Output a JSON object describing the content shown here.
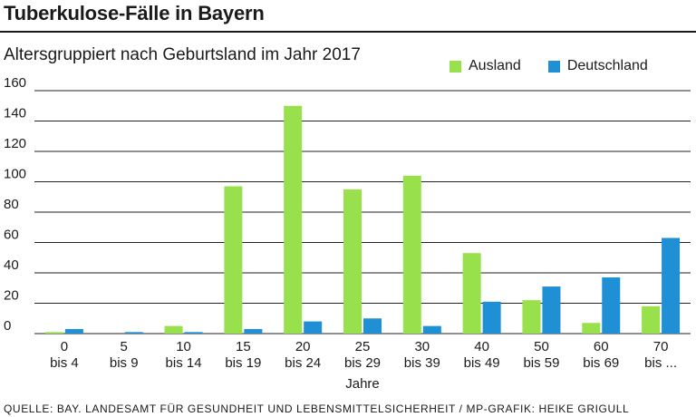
{
  "header": {
    "title": "Tuberkulose-Fälle in Bayern",
    "subtitle": "Altersgruppiert nach Geburtsland im Jahr 2017"
  },
  "legend": {
    "ausland_label": "Ausland",
    "deutschland_label": "Deutschland"
  },
  "colors": {
    "ausland": "#99e04d",
    "deutschland": "#1f8fd6",
    "grid": "#222222"
  },
  "chart_data": {
    "type": "bar",
    "title": "Tuberkulose-Fälle in Bayern",
    "subtitle": "Altersgruppiert nach Geburtsland im Jahr 2017",
    "xlabel": "Jahre",
    "ylabel": "",
    "ylim": [
      0,
      160
    ],
    "yticks": [
      160,
      140,
      120,
      100,
      80,
      60,
      40,
      20,
      0
    ],
    "ytick_labels": [
      "160",
      "140",
      "120",
      "100",
      "80",
      "60",
      "40",
      "20",
      "0"
    ],
    "grid": true,
    "legend_position": "top-right",
    "categories": [
      [
        "0",
        "bis 4"
      ],
      [
        "5",
        "bis 9"
      ],
      [
        "10",
        "bis 14"
      ],
      [
        "15",
        "bis 19"
      ],
      [
        "20",
        "bis 24"
      ],
      [
        "25",
        "bis 29"
      ],
      [
        "30",
        "bis 39"
      ],
      [
        "40",
        "bis 49"
      ],
      [
        "50",
        "bis 59"
      ],
      [
        "60",
        "bis 69"
      ],
      [
        "70",
        "bis ..."
      ]
    ],
    "series": [
      {
        "name": "Ausland",
        "values": [
          1,
          0,
          5,
          97,
          150,
          95,
          104,
          53,
          22,
          7,
          18
        ]
      },
      {
        "name": "Deutschland",
        "values": [
          3,
          1,
          1,
          3,
          8,
          10,
          5,
          21,
          31,
          37,
          63
        ]
      }
    ]
  },
  "footer": {
    "source": "QUELLE: BAY. LANDESAMT FÜR GESUNDHEIT UND LEBENSMITTELSICHERHEIT / MP-GRAFIK: HEIKE GRIGULL"
  }
}
